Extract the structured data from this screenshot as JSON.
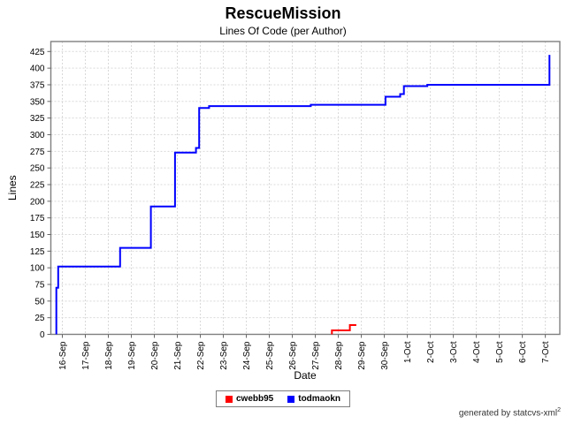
{
  "page": {
    "footer": {
      "text": "generated by statcvs-xml",
      "superscript": "2"
    }
  },
  "chart_data": {
    "type": "line",
    "title": "RescueMission",
    "subtitle": "Lines Of Code (per Author)",
    "xlabel": "Date",
    "ylabel": "Lines",
    "grid": true,
    "legend_position": "bottom",
    "x_tick_labels": [
      "16-Sep",
      "17-Sep",
      "18-Sep",
      "19-Sep",
      "20-Sep",
      "21-Sep",
      "22-Sep",
      "23-Sep",
      "24-Sep",
      "25-Sep",
      "26-Sep",
      "27-Sep",
      "28-Sep",
      "29-Sep",
      "30-Sep",
      "1-Oct",
      "2-Oct",
      "3-Oct",
      "4-Oct",
      "5-Oct",
      "6-Oct",
      "7-Oct"
    ],
    "y_ticks": [
      0,
      25,
      50,
      75,
      100,
      125,
      150,
      175,
      200,
      225,
      250,
      275,
      300,
      325,
      350,
      375,
      400,
      425
    ],
    "xlim": [
      -0.5,
      21.63
    ],
    "ylim": [
      0,
      440
    ],
    "colors": {
      "grid": "#d9d9d9",
      "border": "#7f7f7f",
      "tick": "#666666"
    },
    "series": [
      {
        "name": "cwebb95",
        "color": "#ff0000",
        "points": [
          [
            11.72,
            0
          ],
          [
            11.72,
            6
          ],
          [
            12.5,
            6
          ],
          [
            12.5,
            14
          ],
          [
            12.78,
            14
          ]
        ]
      },
      {
        "name": "todmaokn",
        "color": "#0000ff",
        "points": [
          [
            -0.26,
            0
          ],
          [
            -0.26,
            70
          ],
          [
            -0.18,
            70
          ],
          [
            -0.18,
            102
          ],
          [
            2.51,
            102
          ],
          [
            2.51,
            130
          ],
          [
            3.85,
            130
          ],
          [
            3.85,
            192
          ],
          [
            4.9,
            192
          ],
          [
            4.9,
            273
          ],
          [
            5.81,
            273
          ],
          [
            5.81,
            280
          ],
          [
            5.95,
            280
          ],
          [
            5.95,
            340
          ],
          [
            6.38,
            340
          ],
          [
            6.38,
            343
          ],
          [
            10.8,
            343
          ],
          [
            10.8,
            345
          ],
          [
            14.05,
            345
          ],
          [
            14.05,
            357
          ],
          [
            14.69,
            357
          ],
          [
            14.69,
            361
          ],
          [
            14.85,
            361
          ],
          [
            14.85,
            373
          ],
          [
            15.87,
            373
          ],
          [
            15.87,
            375
          ],
          [
            21.18,
            375
          ],
          [
            21.18,
            420
          ]
        ]
      }
    ]
  }
}
